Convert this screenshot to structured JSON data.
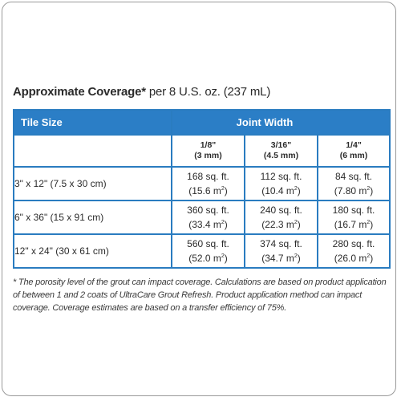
{
  "heading": {
    "title": "Approximate Coverage*",
    "subtitle": "per 8 U.S. oz. (237 mL)"
  },
  "table": {
    "header_tile_size": "Tile Size",
    "header_joint_width": "Joint Width",
    "joint_widths": [
      {
        "size": "1/8\"",
        "metric": "(3 mm)"
      },
      {
        "size": "3/16\"",
        "metric": "(4.5 mm)"
      },
      {
        "size": "1/4\"",
        "metric": "(6 mm)"
      }
    ],
    "rows": [
      {
        "tile_size": "3\" x 12\" (7.5 x 30 cm)",
        "values": [
          {
            "sqft": "168 sq. ft.",
            "metric": "(15.6 m",
            "unit_exp": "2",
            "close": ")"
          },
          {
            "sqft": "112 sq. ft.",
            "metric": "(10.4 m",
            "unit_exp": "2",
            "close": ")"
          },
          {
            "sqft": "84 sq. ft.",
            "metric": "(7.80 m",
            "unit_exp": "2",
            "close": ")"
          }
        ]
      },
      {
        "tile_size": "6\" x 36\" (15 x 91 cm)",
        "values": [
          {
            "sqft": "360 sq. ft.",
            "metric": "(33.4 m",
            "unit_exp": "2",
            "close": ")"
          },
          {
            "sqft": "240 sq. ft.",
            "metric": "(22.3 m",
            "unit_exp": "2",
            "close": ")"
          },
          {
            "sqft": "180 sq. ft.",
            "metric": "(16.7 m",
            "unit_exp": "2",
            "close": ")"
          }
        ]
      },
      {
        "tile_size": "12\" x 24\" (30 x 61 cm)",
        "values": [
          {
            "sqft": "560 sq. ft.",
            "metric": "(52.0 m",
            "unit_exp": "2",
            "close": ")"
          },
          {
            "sqft": "374 sq. ft.",
            "metric": "(34.7 m",
            "unit_exp": "2",
            "close": ")"
          },
          {
            "sqft": "280 sq. ft.",
            "metric": "(26.0 m",
            "unit_exp": "2",
            "close": ")"
          }
        ]
      }
    ]
  },
  "footnote": "* The porosity level of the grout can impact coverage. Calculations are based on product application of between 1 and 2 coats of UltraCare Grout Refresh. Product application method can impact coverage. Coverage estimates are based on a transfer efficiency of 75%.",
  "colors": {
    "header_blue": "#2b7ec6",
    "border_blue": "#2a7cc0",
    "text": "#2b2b2b"
  }
}
